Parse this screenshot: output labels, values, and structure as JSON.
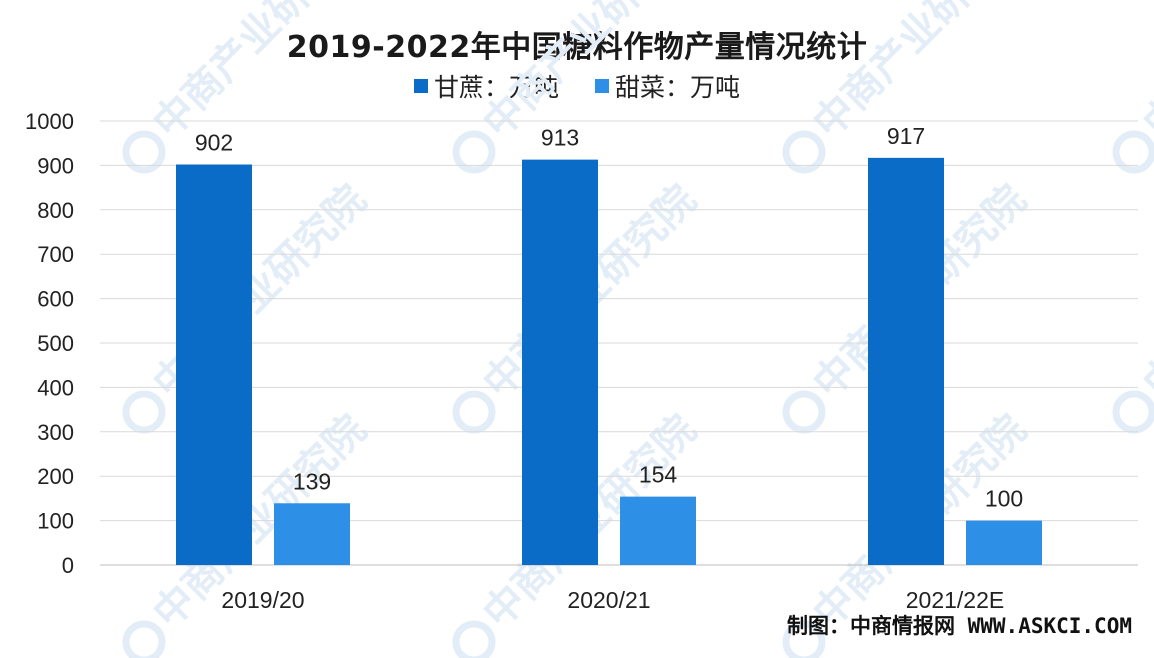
{
  "chart_data": {
    "type": "bar",
    "title": "2019-2022年中国糖料作物产量情况统计",
    "categories": [
      "2019/20",
      "2020/21",
      "2021/22E"
    ],
    "series": [
      {
        "name": "甘蔗：万吨",
        "values": [
          902,
          913,
          917
        ],
        "color": "#0a6cc7"
      },
      {
        "name": "甜菜：万吨",
        "values": [
          139,
          154,
          100
        ],
        "color": "#2d8fe6"
      }
    ],
    "ylim": [
      0,
      1000
    ],
    "yticks": [
      0,
      100,
      200,
      300,
      400,
      500,
      600,
      700,
      800,
      900,
      1000
    ],
    "grid": true,
    "legend_position": "top",
    "data_labels": true
  },
  "source": "制图：中商情报网  WWW.ASKCI.COM",
  "watermark": "中商产业研究院",
  "colors": {
    "grid": "#d9d9d9",
    "axis": "#bfbfbf",
    "watermark": "#e3edf7"
  }
}
